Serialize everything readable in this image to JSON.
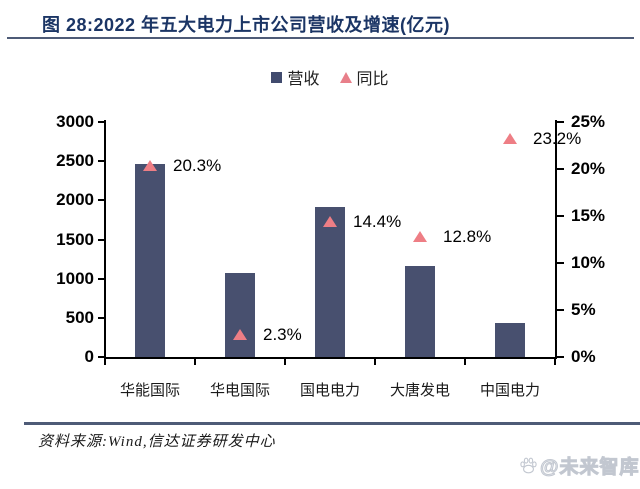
{
  "header": {
    "title": "图 28:2022 年五大电力上市公司营收及增速(亿元)"
  },
  "legend": {
    "items": [
      {
        "label": "营收",
        "marker": "square-icon"
      },
      {
        "label": "同比",
        "marker": "triangle-icon"
      }
    ]
  },
  "chart_data": {
    "type": "bar",
    "title": "2022 年五大电力上市公司营收及增速(亿元)",
    "categories": [
      "华能国际",
      "华电国际",
      "国电电力",
      "大唐发电",
      "中国电力"
    ],
    "series": [
      {
        "name": "营收",
        "type": "bar",
        "axis": "left",
        "values": [
          2460,
          1070,
          1920,
          1160,
          440
        ]
      },
      {
        "name": "同比",
        "type": "scatter",
        "marker": "triangle",
        "axis": "right",
        "values": [
          20.3,
          2.3,
          14.4,
          12.8,
          23.2
        ],
        "labels": [
          "20.3%",
          "2.3%",
          "14.4%",
          "12.8%",
          "23.2%"
        ]
      }
    ],
    "left_axis": {
      "min": 0,
      "max": 3000,
      "ticks": [
        "0",
        "500",
        "1000",
        "1500",
        "2000",
        "2500",
        "3000"
      ]
    },
    "right_axis": {
      "min": 0,
      "max": 25,
      "ticks": [
        "0%",
        "5%",
        "10%",
        "15%",
        "20%",
        "25%"
      ]
    },
    "grid": "off",
    "legend_position": "top-center",
    "colors": {
      "bar": "#48506f",
      "triangle": "#ee7e85",
      "legend_square": "#414b6e",
      "legend_triangle": "#e87f8a"
    }
  },
  "footer": {
    "source": "资料来源:Wind,信达证券研发中心",
    "watermark": "@未来智库"
  }
}
